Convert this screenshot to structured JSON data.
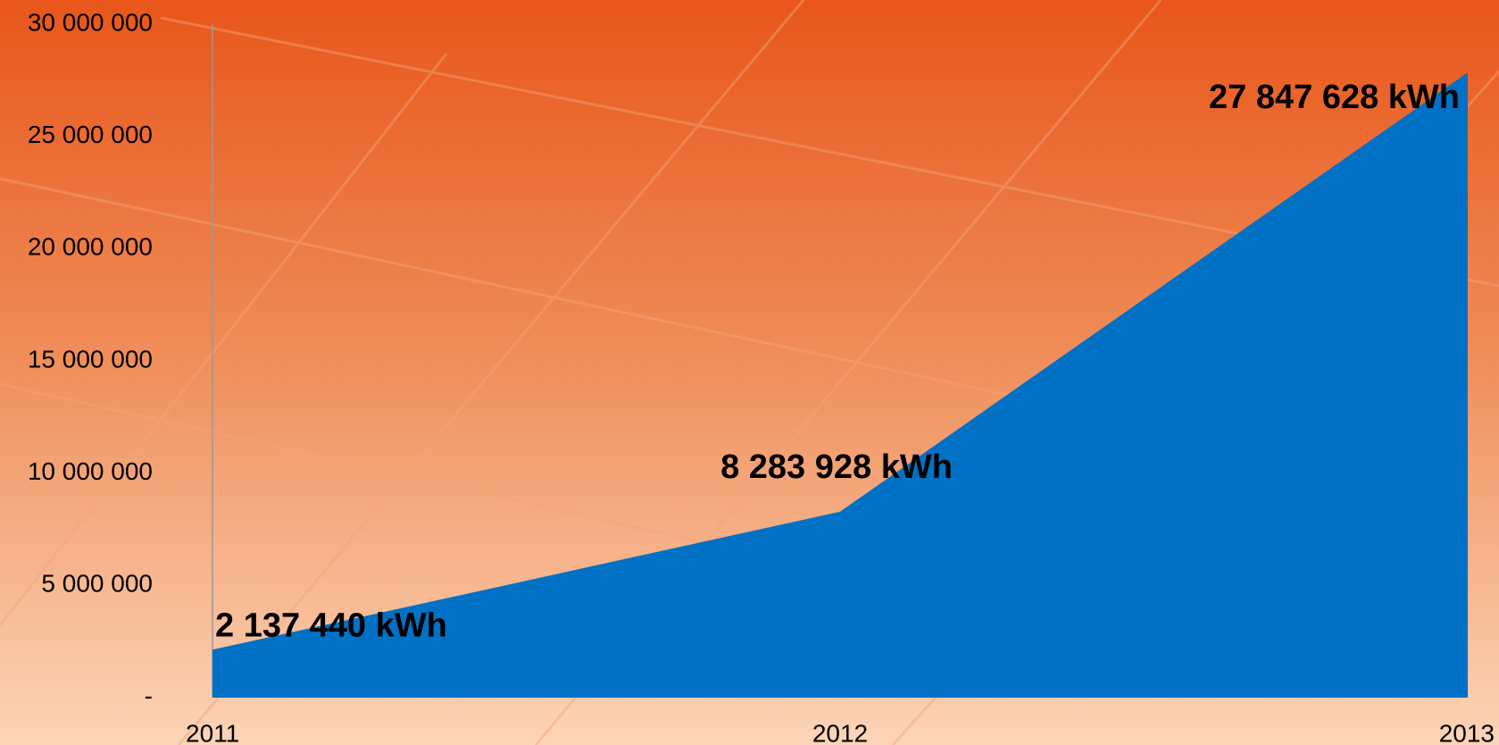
{
  "chart_data": {
    "type": "area",
    "categories": [
      "2011",
      "2012",
      "2013"
    ],
    "values": [
      2137440,
      8283928,
      27847628
    ],
    "value_labels": [
      "2 137 440 kWh",
      "8 283 928 kWh",
      "27 847 628 kWh"
    ],
    "color": "#0071c5",
    "ylim": [
      0,
      30000000
    ],
    "yticks": [
      {
        "value": 0,
        "label": "-"
      },
      {
        "value": 5000000,
        "label": "5 000 000"
      },
      {
        "value": 10000000,
        "label": "10 000 000"
      },
      {
        "value": 15000000,
        "label": "15 000 000"
      },
      {
        "value": 20000000,
        "label": "20 000 000"
      },
      {
        "value": 25000000,
        "label": "25 000 000"
      },
      {
        "value": 30000000,
        "label": "30 000 000"
      }
    ]
  }
}
